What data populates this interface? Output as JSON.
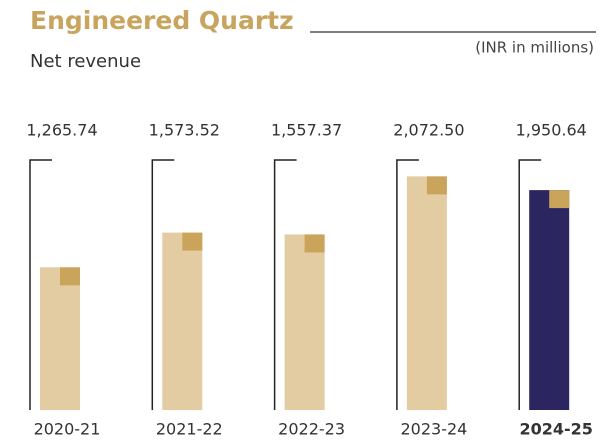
{
  "chart_data": {
    "type": "bar",
    "title": "Engineered Quartz",
    "subtitle": "Net revenue",
    "unit_label": "(INR in millions)",
    "categories": [
      "2020-21",
      "2021-22",
      "2022-23",
      "2023-24",
      "2024-25"
    ],
    "values": [
      1265.74,
      1573.52,
      1557.37,
      2072.5,
      1950.64
    ],
    "value_labels": [
      "1,265.74",
      "1,573.52",
      "1,557.37",
      "2,072.50",
      "1,950.64"
    ],
    "colors": [
      "#e3cca1",
      "#e3cca1",
      "#e3cca1",
      "#e3cca1",
      "#2b2660"
    ],
    "accent_color": "#cba45c",
    "ylim": [
      0,
      2200
    ]
  }
}
